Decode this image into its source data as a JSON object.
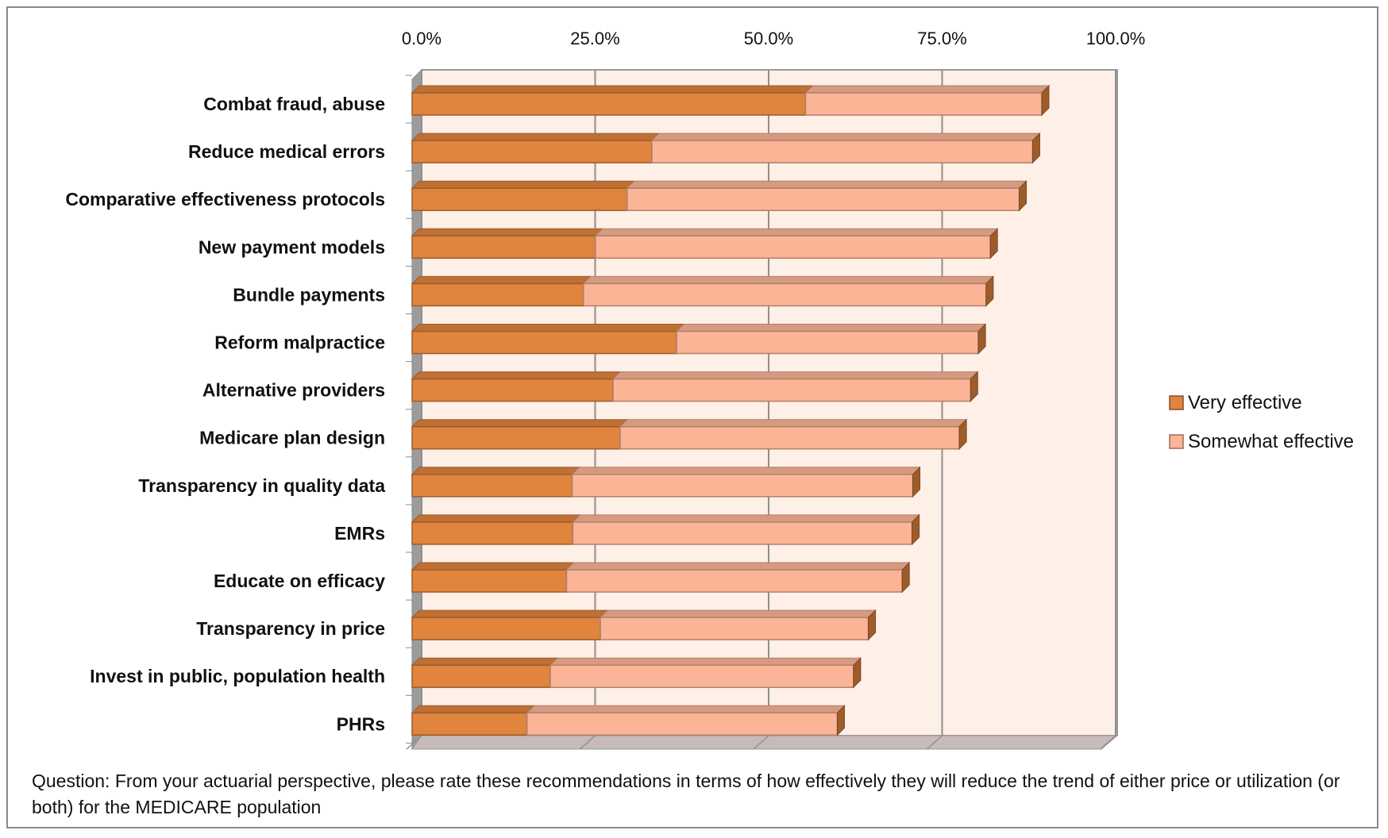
{
  "chart_data": {
    "type": "bar",
    "orientation": "horizontal",
    "stacked": true,
    "three_d": true,
    "categories": [
      "Combat fraud, abuse",
      "Reduce medical errors",
      "Comparative effectiveness protocols",
      "New payment models",
      "Bundle payments",
      "Reform malpractice",
      "Alternative providers",
      "Medicare plan design",
      "Transparency in quality data",
      "EMRs",
      "Educate on efficacy",
      "Transparency in price",
      "Invest in public, population health",
      "PHRs"
    ],
    "series": [
      {
        "name": "Very effective",
        "color": "#E0843E",
        "values": [
          55.8,
          34.0,
          30.5,
          26.0,
          24.3,
          37.5,
          28.5,
          29.5,
          22.7,
          22.8,
          21.9,
          26.7,
          19.6,
          16.3
        ]
      },
      {
        "name": "Somewhat effective",
        "color": "#FBB596",
        "values": [
          33.5,
          54.0,
          55.6,
          56.0,
          57.1,
          42.8,
          50.7,
          48.1,
          48.3,
          48.1,
          47.6,
          38.0,
          43.0,
          44.0
        ]
      }
    ],
    "xlim": [
      0,
      100
    ],
    "ticks": [
      "0.0%",
      "25.0%",
      "50.0%",
      "75.0%",
      "100.0%"
    ],
    "tick_position": "top",
    "grid": true,
    "legend_position": "right",
    "plot_background": "#FEEFE7",
    "caption": "Question: From your actuarial perspective, please rate these recommendations in terms of how effectively they will reduce the trend of either price or utilization (or both) for the MEDICARE population"
  }
}
